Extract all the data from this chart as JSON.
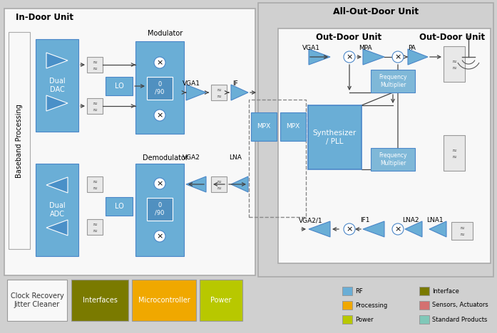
{
  "bg_outer": "#d0d0d0",
  "bg_indoor": "#f8f8f8",
  "bg_alloutdoor": "#d0d0d0",
  "bg_outdoor": "#f0f0f0",
  "blue": "#6aaed6",
  "blue_dark": "#5b9bd5",
  "blue_edge": "#4a86c8",
  "gray_box": "#e8e8e8",
  "gray_edge": "#999999",
  "olive": "#7a7a00",
  "orange": "#f0a800",
  "yellow_green": "#b8c800",
  "salmon": "#d47070",
  "teal": "#80c8b8",
  "title_main": "All-Out-Door Unit",
  "title_indoor": "In-Door Unit",
  "title_outdoor": "Out-Door Unit",
  "title_baseband": "Baseband Processing",
  "title_modulator": "Modulator",
  "title_demodulator": "Demodulator",
  "legend": [
    [
      "RF",
      "#6aaed6"
    ],
    [
      "Processing",
      "#f0a800"
    ],
    [
      "Power",
      "#b8c800"
    ],
    [
      "Interface",
      "#7a7a00"
    ],
    [
      "Sensors, Actuators",
      "#d47070"
    ],
    [
      "Standard Products",
      "#80c8b8"
    ]
  ],
  "bottom_boxes": [
    {
      "label": "Clock Recovery\nJitter Cleaner",
      "fc": "#f8f8f8",
      "tc": "#333333"
    },
    {
      "label": "Interfaces",
      "fc": "#7a7a00",
      "tc": "#ffffff"
    },
    {
      "label": "Microcontroller",
      "fc": "#f0a800",
      "tc": "#ffffff"
    },
    {
      "label": "Power",
      "fc": "#b8c800",
      "tc": "#ffffff"
    }
  ]
}
